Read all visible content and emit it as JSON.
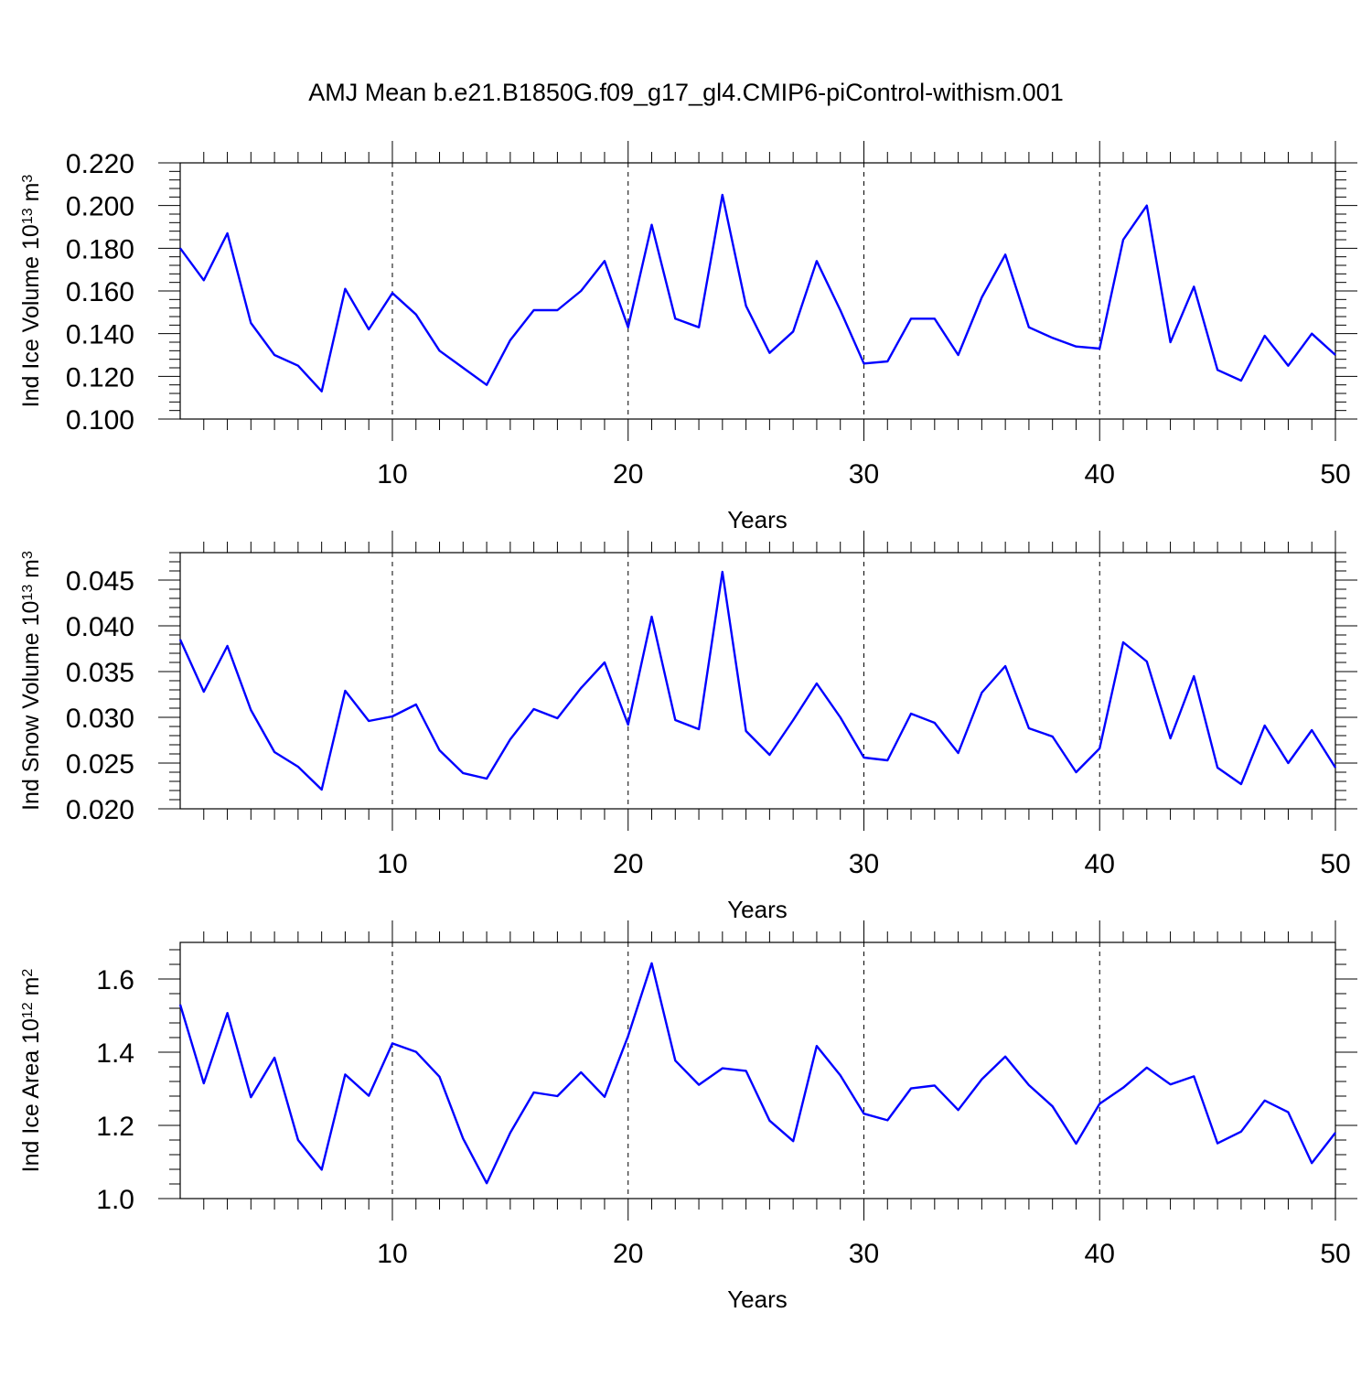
{
  "title": "AMJ Mean b.e21.B1850G.f09_g17_gl4.CMIP6-piControl-withism.001",
  "chart_data": [
    {
      "type": "line",
      "ylabel": "Ind Ice Volume 10",
      "ylabel_exp": "13",
      "ylabel_unit": " m",
      "ylabel_unit_exp": "3",
      "xlabel": "Years",
      "xlim": [
        1,
        50
      ],
      "ylim": [
        0.1,
        0.22
      ],
      "yticks": [
        "0.100",
        "0.120",
        "0.140",
        "0.160",
        "0.180",
        "0.200",
        "0.220"
      ],
      "xticks": [
        "10",
        "20",
        "30",
        "40",
        "50"
      ],
      "color": "#0000ff",
      "x": [
        1,
        2,
        3,
        4,
        5,
        6,
        7,
        8,
        9,
        10,
        11,
        12,
        13,
        14,
        15,
        16,
        17,
        18,
        19,
        20,
        21,
        22,
        23,
        24,
        25,
        26,
        27,
        28,
        29,
        30,
        31,
        32,
        33,
        34,
        35,
        36,
        37,
        38,
        39,
        40,
        41,
        42,
        43,
        44,
        45,
        46,
        47,
        48,
        49,
        50
      ],
      "y": [
        0.18,
        0.165,
        0.187,
        0.145,
        0.13,
        0.125,
        0.113,
        0.161,
        0.142,
        0.159,
        0.149,
        0.132,
        0.124,
        0.116,
        0.137,
        0.151,
        0.151,
        0.16,
        0.174,
        0.143,
        0.191,
        0.147,
        0.143,
        0.205,
        0.153,
        0.131,
        0.141,
        0.174,
        0.151,
        0.126,
        0.127,
        0.147,
        0.147,
        0.13,
        0.157,
        0.177,
        0.143,
        0.138,
        0.134,
        0.133,
        0.184,
        0.2,
        0.136,
        0.162,
        0.123,
        0.118,
        0.139,
        0.125,
        0.14,
        0.13
      ]
    },
    {
      "type": "line",
      "ylabel": "Ind Snow Volume 10",
      "ylabel_exp": "13",
      "ylabel_unit": " m",
      "ylabel_unit_exp": "3",
      "xlabel": "Years",
      "xlim": [
        1,
        50
      ],
      "ylim": [
        0.02,
        0.048
      ],
      "yticks": [
        "0.020",
        "0.025",
        "0.030",
        "0.035",
        "0.040",
        "0.045"
      ],
      "xticks": [
        "10",
        "20",
        "30",
        "40",
        "50"
      ],
      "color": "#0000ff",
      "x": [
        1,
        2,
        3,
        4,
        5,
        6,
        7,
        8,
        9,
        10,
        11,
        12,
        13,
        14,
        15,
        16,
        17,
        18,
        19,
        20,
        21,
        22,
        23,
        24,
        25,
        26,
        27,
        28,
        29,
        30,
        31,
        32,
        33,
        34,
        35,
        36,
        37,
        38,
        39,
        40,
        41,
        42,
        43,
        44,
        45,
        46,
        47,
        48,
        49,
        50
      ],
      "y": [
        0.0385,
        0.0328,
        0.0378,
        0.0308,
        0.0262,
        0.0246,
        0.0221,
        0.0329,
        0.0296,
        0.0301,
        0.0314,
        0.0264,
        0.0239,
        0.0233,
        0.0276,
        0.0309,
        0.0299,
        0.0332,
        0.036,
        0.0292,
        0.041,
        0.0297,
        0.0287,
        0.0459,
        0.0285,
        0.0259,
        0.0297,
        0.0337,
        0.03,
        0.0256,
        0.0253,
        0.0304,
        0.0294,
        0.0261,
        0.0327,
        0.0356,
        0.0288,
        0.0279,
        0.024,
        0.0266,
        0.0382,
        0.0361,
        0.0277,
        0.0345,
        0.0245,
        0.0227,
        0.0291,
        0.025,
        0.0286,
        0.0245
      ]
    },
    {
      "type": "line",
      "ylabel": "Ind Ice Area 10",
      "ylabel_exp": "12",
      "ylabel_unit": " m",
      "ylabel_unit_exp": "2",
      "xlabel": "Years",
      "xlim": [
        1,
        50
      ],
      "ylim": [
        1.0,
        1.7
      ],
      "yticks": [
        "1.0",
        "1.2",
        "1.4",
        "1.6"
      ],
      "xticks": [
        "10",
        "20",
        "30",
        "40",
        "50"
      ],
      "color": "#0000ff",
      "x": [
        1,
        2,
        3,
        4,
        5,
        6,
        7,
        8,
        9,
        10,
        11,
        12,
        13,
        14,
        15,
        16,
        17,
        18,
        19,
        20,
        21,
        22,
        23,
        24,
        25,
        26,
        27,
        28,
        29,
        30,
        31,
        32,
        33,
        34,
        35,
        36,
        37,
        38,
        39,
        40,
        41,
        42,
        43,
        44,
        45,
        46,
        47,
        48,
        49,
        50
      ],
      "y": [
        1.53,
        1.315,
        1.507,
        1.277,
        1.385,
        1.16,
        1.079,
        1.339,
        1.281,
        1.424,
        1.401,
        1.333,
        1.164,
        1.042,
        1.18,
        1.29,
        1.28,
        1.345,
        1.278,
        1.444,
        1.643,
        1.377,
        1.311,
        1.356,
        1.349,
        1.213,
        1.157,
        1.417,
        1.337,
        1.232,
        1.214,
        1.301,
        1.309,
        1.242,
        1.326,
        1.388,
        1.31,
        1.252,
        1.15,
        1.259,
        1.303,
        1.358,
        1.312,
        1.334,
        1.151,
        1.183,
        1.268,
        1.236,
        1.097,
        1.18
      ]
    }
  ]
}
